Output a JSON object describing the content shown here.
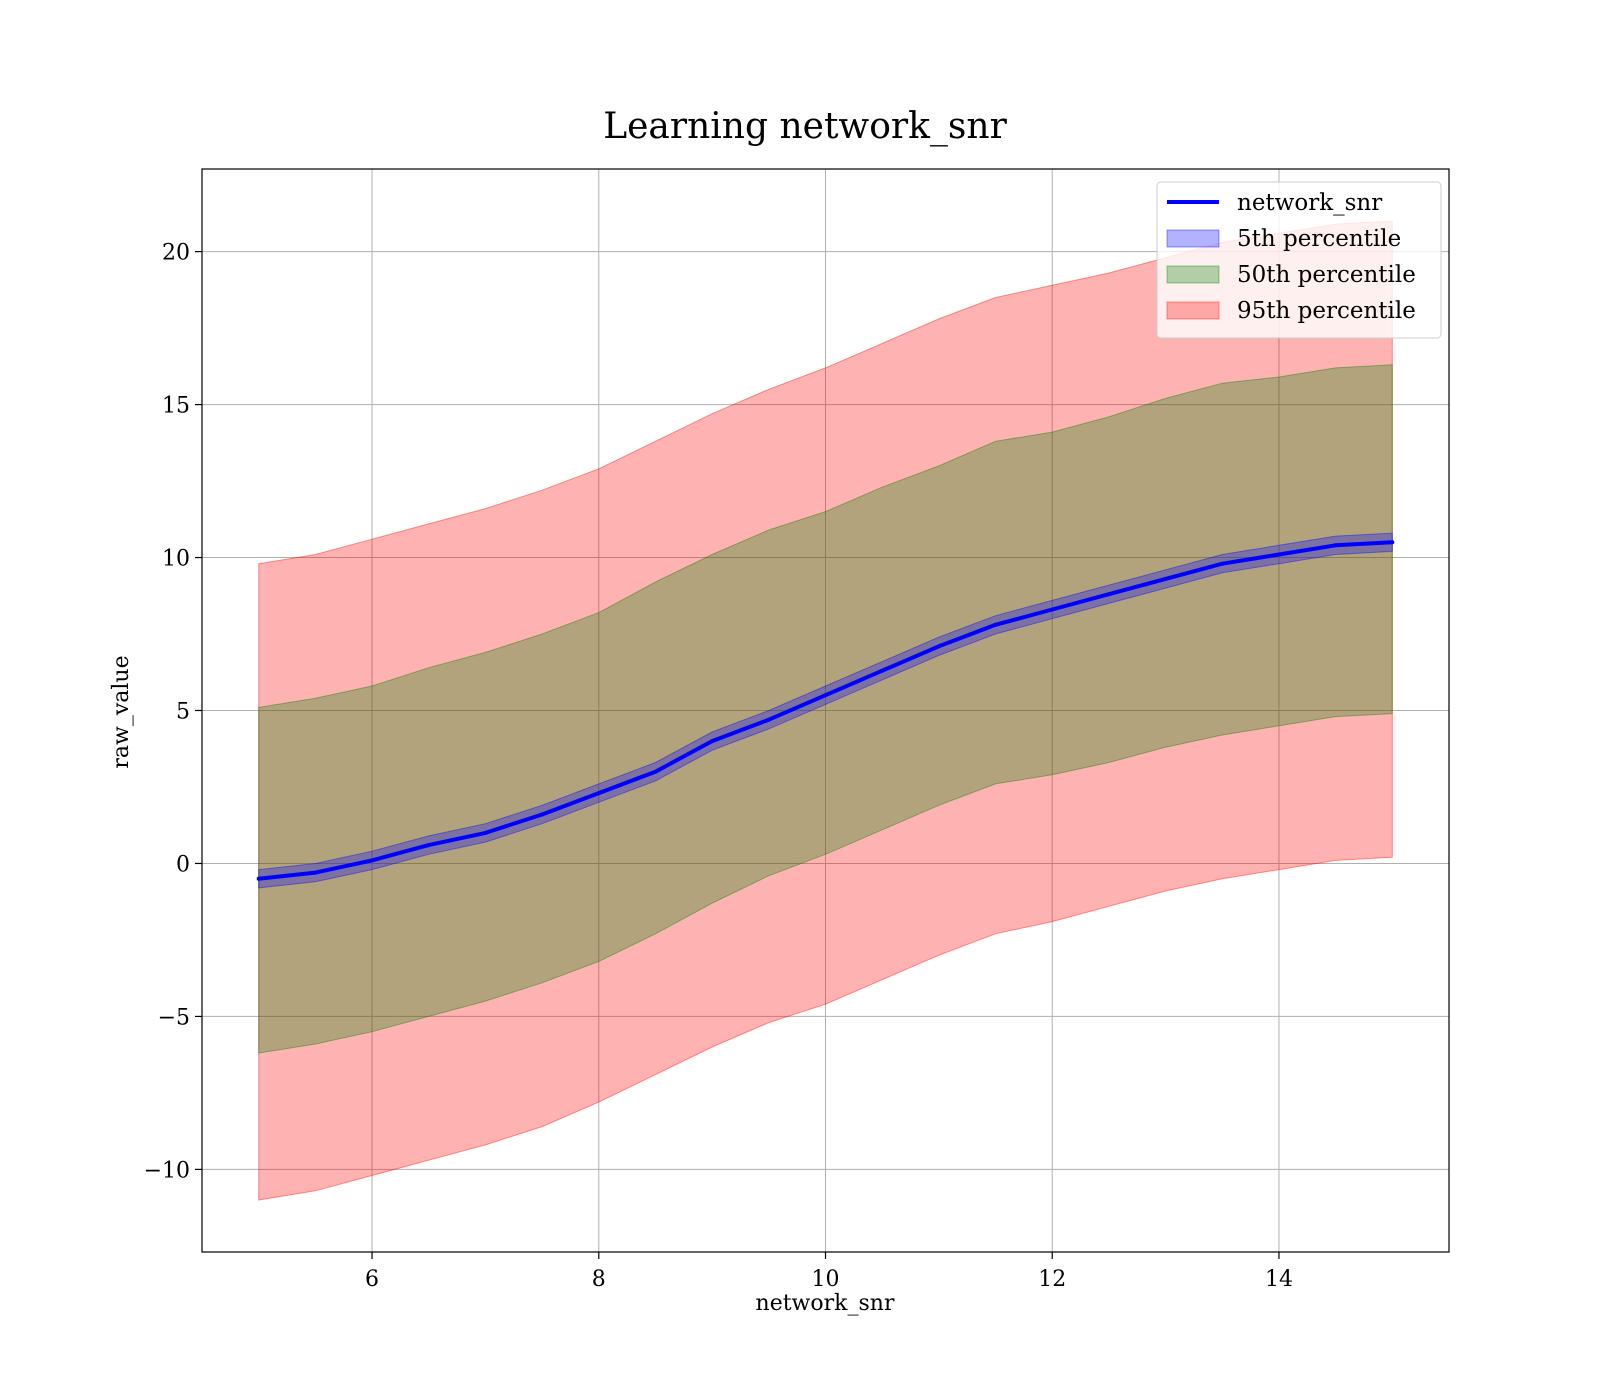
{
  "chart_data": {
    "type": "line",
    "title": "Learning network_snr",
    "xlabel": "network_snr",
    "ylabel": "raw_value",
    "xlim": [
      4.5,
      15.5
    ],
    "ylim": [
      -12.7,
      22.7
    ],
    "xticks": [
      6,
      8,
      10,
      12,
      14
    ],
    "yticks": [
      -10,
      -5,
      0,
      5,
      10,
      15,
      20
    ],
    "xtick_labels": [
      "6",
      "8",
      "10",
      "12",
      "14"
    ],
    "ytick_labels": [
      "−10",
      "−5",
      "0",
      "5",
      "10",
      "15",
      "20"
    ],
    "grid": true,
    "legend_position": "top-right",
    "x": [
      5.0,
      5.5,
      6.0,
      6.5,
      7.0,
      7.5,
      8.0,
      8.5,
      9.0,
      9.5,
      10.0,
      10.5,
      11.0,
      11.5,
      12.0,
      12.5,
      13.0,
      13.5,
      14.0,
      14.5,
      15.0
    ],
    "series": [
      {
        "name": "network_snr",
        "kind": "line",
        "color": "#0000ff",
        "values": [
          -0.5,
          -0.3,
          0.1,
          0.6,
          1.0,
          1.6,
          2.3,
          3.0,
          4.0,
          4.7,
          5.5,
          6.3,
          7.1,
          7.8,
          8.3,
          8.8,
          9.3,
          9.8,
          10.1,
          10.4,
          10.5
        ]
      },
      {
        "name": "5th percentile",
        "kind": "band",
        "color": "#0000ff",
        "alpha": 0.3,
        "lower": [
          -0.8,
          -0.6,
          -0.2,
          0.3,
          0.7,
          1.3,
          2.0,
          2.7,
          3.7,
          4.4,
          5.2,
          6.0,
          6.8,
          7.5,
          8.0,
          8.5,
          9.0,
          9.5,
          9.8,
          10.1,
          10.2
        ],
        "upper": [
          -0.2,
          0.0,
          0.4,
          0.9,
          1.3,
          1.9,
          2.6,
          3.3,
          4.3,
          5.0,
          5.8,
          6.6,
          7.4,
          8.1,
          8.6,
          9.1,
          9.6,
          10.1,
          10.4,
          10.7,
          10.8
        ]
      },
      {
        "name": "50th percentile",
        "kind": "band",
        "color": "#008000",
        "alpha": 0.3,
        "lower": [
          -6.2,
          -5.9,
          -5.5,
          -5.0,
          -4.5,
          -3.9,
          -3.2,
          -2.3,
          -1.3,
          -0.4,
          0.3,
          1.1,
          1.9,
          2.6,
          2.9,
          3.3,
          3.8,
          4.2,
          4.5,
          4.8,
          4.9
        ],
        "upper": [
          5.1,
          5.4,
          5.8,
          6.4,
          6.9,
          7.5,
          8.2,
          9.2,
          10.1,
          10.9,
          11.5,
          12.3,
          13.0,
          13.8,
          14.1,
          14.6,
          15.2,
          15.7,
          15.9,
          16.2,
          16.3
        ]
      },
      {
        "name": "95th percentile",
        "kind": "band",
        "color": "#ff0000",
        "alpha": 0.3,
        "lower": [
          -11.0,
          -10.7,
          -10.2,
          -9.7,
          -9.2,
          -8.6,
          -7.8,
          -6.9,
          -6.0,
          -5.2,
          -4.6,
          -3.8,
          -3.0,
          -2.3,
          -1.9,
          -1.4,
          -0.9,
          -0.5,
          -0.2,
          0.1,
          0.2
        ],
        "upper": [
          9.8,
          10.1,
          10.6,
          11.1,
          11.6,
          12.2,
          12.9,
          13.8,
          14.7,
          15.5,
          16.2,
          17.0,
          17.8,
          18.5,
          18.9,
          19.3,
          19.8,
          20.3,
          20.6,
          20.9,
          21.0
        ]
      }
    ]
  }
}
